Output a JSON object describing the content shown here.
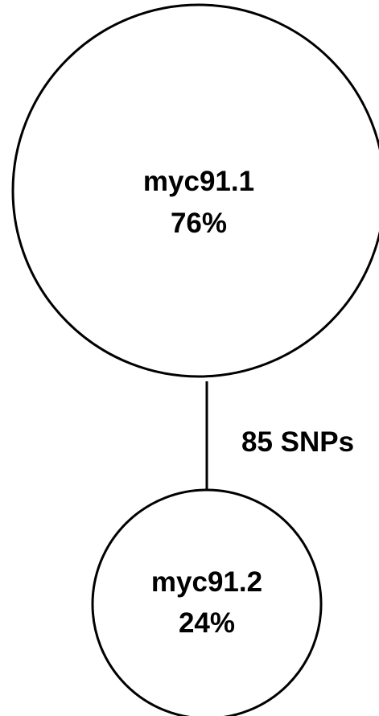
{
  "nodes": [
    {
      "id": "myc91.1",
      "label": "myc91.1",
      "percent": "76%",
      "share": 0.76
    },
    {
      "id": "myc91.2",
      "label": "myc91.2",
      "percent": "24%",
      "share": 0.24
    }
  ],
  "edges": [
    {
      "from": "myc91.1",
      "to": "myc91.2",
      "label": "85 SNPs",
      "snps": 85
    }
  ],
  "colors": {
    "stroke": "#000000",
    "fill": "#ffffff",
    "text": "#000000"
  }
}
